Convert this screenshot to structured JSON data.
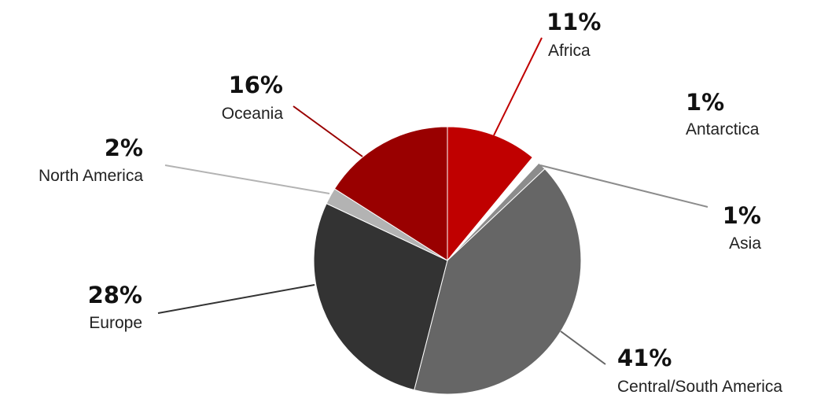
{
  "chart_data": {
    "type": "pie",
    "title": "",
    "slices": [
      {
        "label": "Africa",
        "percent_label": "11%",
        "value": 11,
        "color": "#c00000"
      },
      {
        "label": "Antarctica",
        "percent_label": "1%",
        "value": 1,
        "color": "#ffffff"
      },
      {
        "label": "Asia",
        "percent_label": "1%",
        "value": 1,
        "color": "#8c8c8c"
      },
      {
        "label": "Central/South America",
        "percent_label": "41%",
        "value": 41,
        "color": "#666666"
      },
      {
        "label": "Europe",
        "percent_label": "28%",
        "value": 28,
        "color": "#333333"
      },
      {
        "label": "North America",
        "percent_label": "2%",
        "value": 2,
        "color": "#b3b3b3"
      },
      {
        "label": "Oceania",
        "percent_label": "16%",
        "value": 16,
        "color": "#990000"
      }
    ],
    "start_angle_deg": 0,
    "direction": "clockwise",
    "legend": "none",
    "leader_lines": true
  }
}
